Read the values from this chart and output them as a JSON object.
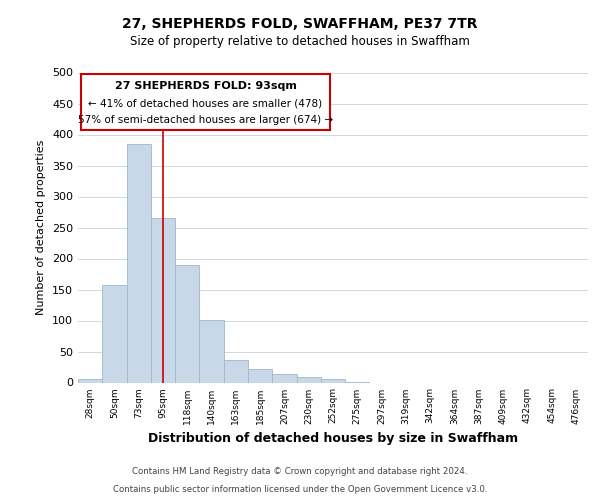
{
  "title": "27, SHEPHERDS FOLD, SWAFFHAM, PE37 7TR",
  "subtitle": "Size of property relative to detached houses in Swaffham",
  "xlabel": "Distribution of detached houses by size in Swaffham",
  "ylabel": "Number of detached properties",
  "bin_labels": [
    "28sqm",
    "50sqm",
    "73sqm",
    "95sqm",
    "118sqm",
    "140sqm",
    "163sqm",
    "185sqm",
    "207sqm",
    "230sqm",
    "252sqm",
    "275sqm",
    "297sqm",
    "319sqm",
    "342sqm",
    "364sqm",
    "387sqm",
    "409sqm",
    "432sqm",
    "454sqm",
    "476sqm"
  ],
  "bar_values": [
    6,
    157,
    384,
    265,
    190,
    101,
    37,
    22,
    13,
    9,
    5,
    1,
    0,
    0,
    0,
    0,
    0,
    0,
    0,
    0,
    0
  ],
  "bar_color": "#c8d8e8",
  "bar_edge_color": "#a0b8cc",
  "vline_x": 3,
  "vline_color": "#cc0000",
  "ylim": [
    0,
    500
  ],
  "yticks": [
    0,
    50,
    100,
    150,
    200,
    250,
    300,
    350,
    400,
    450,
    500
  ],
  "annotation_title": "27 SHEPHERDS FOLD: 93sqm",
  "annotation_line1": "← 41% of detached houses are smaller (478)",
  "annotation_line2": "57% of semi-detached houses are larger (674) →",
  "annotation_box_color": "#ffffff",
  "annotation_box_edge": "#cc0000",
  "footer_line1": "Contains HM Land Registry data © Crown copyright and database right 2024.",
  "footer_line2": "Contains public sector information licensed under the Open Government Licence v3.0.",
  "background_color": "#ffffff",
  "grid_color": "#d0d8e0"
}
